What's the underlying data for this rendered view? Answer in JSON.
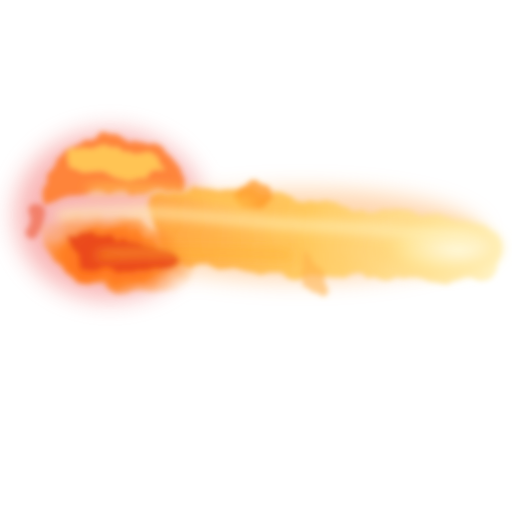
{
  "image": {
    "subject": "fireball-effect",
    "background": "#ffffff",
    "colors": {
      "core_red": "#e8431a",
      "orange": "#ff7a1a",
      "amber": "#ffb02e",
      "yellow": "#ffd45c",
      "pale_yellow": "#fff0b8",
      "edge_pink": "#f47a7a"
    }
  }
}
